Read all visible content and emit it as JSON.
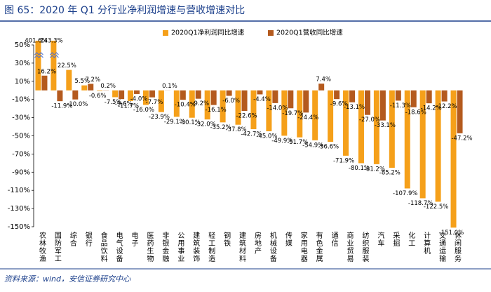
{
  "chart_data": {
    "type": "bar",
    "title": "图 65：2020 年 Q1 分行业净利润增速与营收增速对比",
    "source": "资料来源：wind，安信证券研究中心",
    "categories": [
      "农林牧渔",
      "国防军工",
      "综合",
      "银行",
      "食品饮料",
      "电气设备",
      "电子",
      "医药生物",
      "非银金融",
      "公用事业",
      "建筑装饰",
      "轻工制造",
      "钢铁",
      "建筑材料",
      "房地产",
      "机械设备",
      "传媒",
      "家用电器",
      "有色金属",
      "通信",
      "商业贸易",
      "纺织服装",
      "汽车",
      "采掘",
      "化工",
      "计算机",
      "交通运输",
      "休闲服务"
    ],
    "series": [
      {
        "name": "2020Q1净利润同比增速",
        "color": "#f5a01a",
        "values": [
          401.6,
          143.3,
          22.5,
          5.5,
          -0.6,
          -7.5,
          -11.7,
          -16.0,
          -23.9,
          -29.1,
          -30.1,
          -32.0,
          -35.2,
          -37.8,
          -42.7,
          -45.0,
          -49.9,
          -51.7,
          -54.9,
          -56.6,
          -71.9,
          -80.1,
          -81.2,
          -85.2,
          -107.9,
          -118.7,
          -122.5,
          -151.0
        ],
        "value_labels": [
          "401.6%",
          "143.3%",
          "22.5%",
          "5.5%",
          "-0.6%",
          "-7.5%",
          "-11.7%",
          "-16.0%",
          "-23.9%",
          "-29.1%",
          "-30.1%",
          "-32.0%",
          "-35.2%",
          "-37.8%",
          "-42.7%",
          "-45.0%",
          "-49.9%",
          "-51.7%",
          "-54.9%",
          "-56.6%",
          "-71.9%",
          "-80.1%",
          "-81.2%",
          "-85.2%",
          "-107.9%",
          "-118.7%",
          "-122.5%",
          "-151.0%"
        ]
      },
      {
        "name": "2020Q1营收同比增速",
        "color": "#b45a1e",
        "values": [
          16.2,
          -11.9,
          -10.0,
          7.2,
          0.2,
          -9.6,
          -4.0,
          -7.7,
          0.1,
          -10.4,
          -9.2,
          -16.1,
          -6.0,
          -22.6,
          -4.4,
          -14.0,
          -19.7,
          -24.4,
          7.4,
          -9.6,
          -13.1,
          -27.0,
          -33.1,
          -11.3,
          -18.6,
          -14.2,
          -12.2,
          -47.2
        ],
        "value_labels": [
          "16.2%",
          "-11.9%",
          "-10.0%",
          "7.2%",
          "0.2%",
          "-9.6%",
          "-4.0%",
          "-7.7%",
          "0.1%",
          "-10.4%",
          "-9.2%",
          "-16.1%",
          "-6.0%",
          "-22.6%",
          "-4.4%",
          "-14.0%",
          "-19.7%",
          "-24.4%",
          "7.4%",
          "-9.6%",
          "-13.1%",
          "-27.0%",
          "-33.1%",
          "-11.3%",
          "-18.6%",
          "-14.2%",
          "-12.2%",
          "-47.2%"
        ]
      }
    ],
    "ylim": [
      -150,
      50
    ],
    "yticks": [
      {
        "value": 50,
        "label": "50%"
      },
      {
        "value": 30,
        "label": "30%"
      },
      {
        "value": 10,
        "label": "10%"
      },
      {
        "value": -10,
        "label": "-10%"
      },
      {
        "value": -30,
        "label": "-30%"
      },
      {
        "value": -50,
        "label": "-50%"
      },
      {
        "value": -70,
        "label": "-70%"
      },
      {
        "value": -90,
        "label": "-90%"
      },
      {
        "value": -110,
        "label": "-110%"
      },
      {
        "value": -130,
        "label": "-130%"
      },
      {
        "value": -150,
        "label": "-150%"
      }
    ],
    "grid": false,
    "legend": "top"
  }
}
